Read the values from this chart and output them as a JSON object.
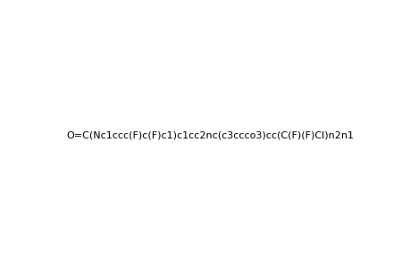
{
  "smiles": "O=C(Nc1ccc(F)c(F)c1)c1cc2nc(c3ccco3)cc(C(F)(F)Cl)n2n1",
  "title": "",
  "background_color": "#ffffff",
  "figsize": [
    4.6,
    3.0
  ],
  "dpi": 100
}
